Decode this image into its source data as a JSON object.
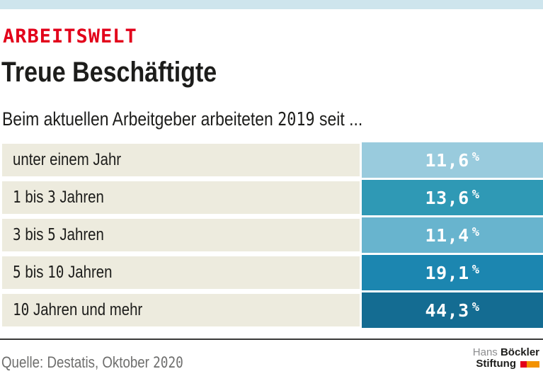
{
  "header": {
    "kicker": "ARBEITSWELT",
    "title": "Treue Beschäftigte",
    "subtitle": "Beim aktuellen Arbeitgeber arbeiteten 2019 seit ..."
  },
  "table": {
    "unit": "%",
    "label_bg": "#edebde",
    "rows": [
      {
        "label": "unter einem Jahr",
        "value": "11,6",
        "color": "#99cbdd"
      },
      {
        "label": "1 bis 3 Jahren",
        "value": "13,6",
        "color": "#2f99b5"
      },
      {
        "label": "3 bis 5 Jahren",
        "value": "11,4",
        "color": "#68b4ce"
      },
      {
        "label": "5 bis 10 Jahren",
        "value": "19,1",
        "color": "#1c86b0"
      },
      {
        "label": "10 Jahren und mehr",
        "value": "44,3",
        "color": "#146c92"
      }
    ]
  },
  "footer": {
    "source": "Quelle: Destatis, Oktober 2020",
    "logo": {
      "hans": "Hans",
      "boeckler": "Böckler",
      "stiftung": "Stiftung",
      "mark_colors": [
        "#e2001a",
        "#f39200"
      ]
    }
  },
  "colors": {
    "topbar": "#cee5ed",
    "accent_red": "#e2001a",
    "divider": "#3a3a39"
  },
  "chart_data": {
    "type": "table",
    "title": "Treue Beschäftigte",
    "kicker": "ARBEITSWELT",
    "subtitle": "Beim aktuellen Arbeitgeber arbeiteten 2019 seit ...",
    "categories": [
      "unter einem Jahr",
      "1 bis 3 Jahren",
      "3 bis 5 Jahren",
      "5 bis 10 Jahren",
      "10 Jahren und mehr"
    ],
    "values": [
      11.6,
      13.6,
      11.4,
      19.1,
      44.3
    ],
    "unit": "%",
    "value_labels": [
      "11,6 %",
      "13,6 %",
      "11,4 %",
      "19,1 %",
      "44,3 %"
    ],
    "source": "Quelle: Destatis, Oktober 2020",
    "legend_position": "none",
    "grid": false
  }
}
